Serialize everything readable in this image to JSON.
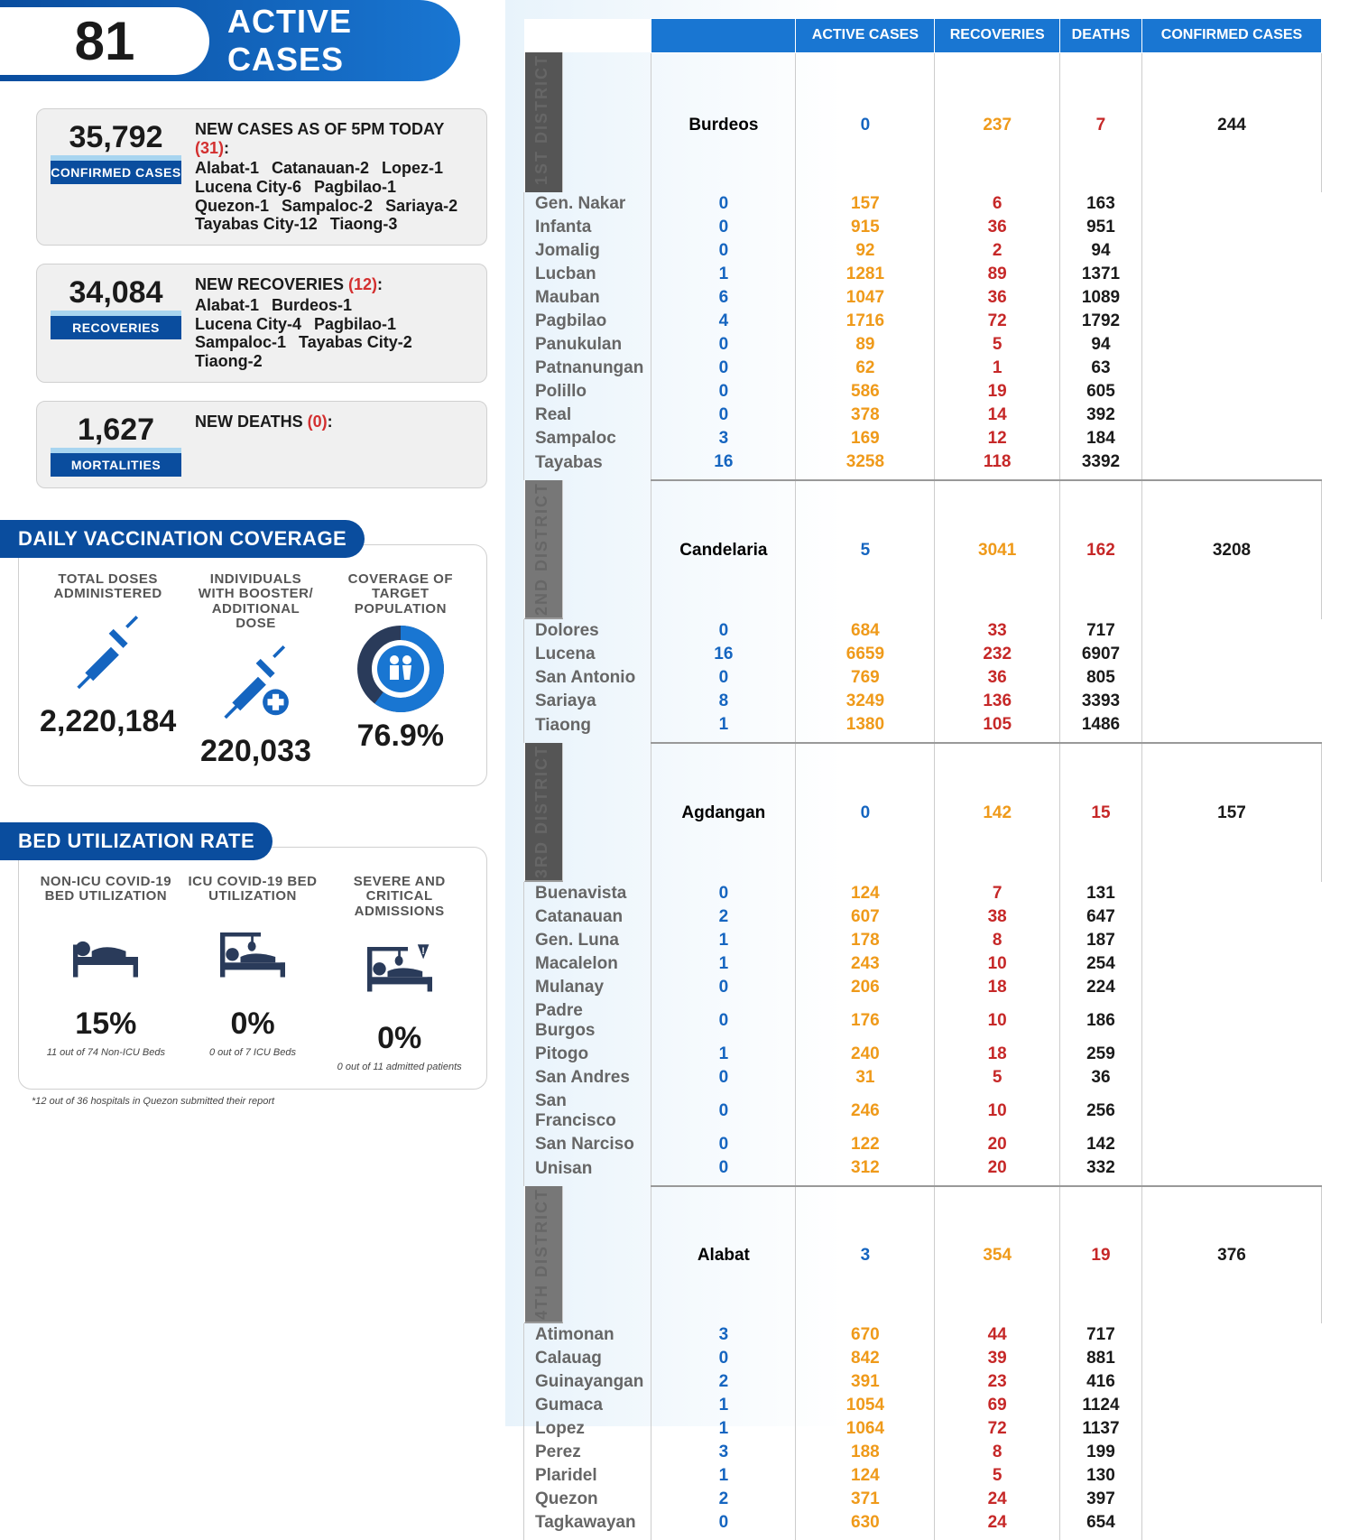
{
  "header": {
    "number": "81",
    "label": "ACTIVE CASES"
  },
  "stats": {
    "confirmed": {
      "num": "35,792",
      "badge": "CONFIRMED CASES",
      "title_pre": "NEW CASES AS OF 5PM TODAY ",
      "title_red": "(31)",
      "title_post": ":",
      "items": [
        "Alabat-1",
        "Catanauan-2",
        "Lopez-1",
        "Lucena City-6",
        "Pagbilao-1",
        "Quezon-1",
        "Sampaloc-2",
        "Sariaya-2",
        "Tayabas City-12",
        "Tiaong-3"
      ]
    },
    "recoveries": {
      "num": "34,084",
      "badge": "RECOVERIES",
      "title_pre": "NEW RECOVERIES ",
      "title_red": "(12)",
      "title_post": ":",
      "items": [
        "Alabat-1",
        "Burdeos-1",
        "Lucena City-4",
        "Pagbilao-1",
        "Sampaloc-1",
        "Tayabas City-2",
        "Tiaong-2"
      ]
    },
    "mortalities": {
      "num": "1,627",
      "badge": "MORTALITIES",
      "title_pre": "NEW DEATHS ",
      "title_red": "(0)",
      "title_post": ":",
      "items": []
    }
  },
  "vax": {
    "section": "DAILY VACCINATION COVERAGE",
    "doses_title": "TOTAL DOSES ADMINISTERED",
    "doses": "2,220,184",
    "booster_title": "INDIVIDUALS WITH BOOSTER/ ADDITIONAL DOSE",
    "booster": "220,033",
    "coverage_title": "COVERAGE OF TARGET POPULATION",
    "coverage": "76.9%"
  },
  "bed": {
    "section": "BED UTILIZATION RATE",
    "nonicu_title": "NON-ICU COVID-19 BED UTILIZATION",
    "nonicu": "15%",
    "nonicu_note": "11 out of 74 Non-ICU Beds",
    "icu_title": "ICU COVID-19 BED UTILIZATION",
    "icu": "0%",
    "icu_note": "0 out of 7 ICU Beds",
    "severe_title": "SEVERE AND CRITICAL ADMISSIONS",
    "severe": "0%",
    "severe_note": "0 out of 11 admitted patients",
    "footnote": "*12 out of 36 hospitals in Quezon submitted their report"
  },
  "table": {
    "headers": [
      "ACTIVE CASES",
      "RECOVERIES",
      "DEATHS",
      "CONFIRMED CASES"
    ],
    "districts": [
      {
        "name": "1ST DISTRICT",
        "rows": [
          [
            "Burdeos",
            "0",
            "237",
            "7",
            "244"
          ],
          [
            "Gen. Nakar",
            "0",
            "157",
            "6",
            "163"
          ],
          [
            "Infanta",
            "0",
            "915",
            "36",
            "951"
          ],
          [
            "Jomalig",
            "0",
            "92",
            "2",
            "94"
          ],
          [
            "Lucban",
            "1",
            "1281",
            "89",
            "1371"
          ],
          [
            "Mauban",
            "6",
            "1047",
            "36",
            "1089"
          ],
          [
            "Pagbilao",
            "4",
            "1716",
            "72",
            "1792"
          ],
          [
            "Panukulan",
            "0",
            "89",
            "5",
            "94"
          ],
          [
            "Patnanungan",
            "0",
            "62",
            "1",
            "63"
          ],
          [
            "Polillo",
            "0",
            "586",
            "19",
            "605"
          ],
          [
            "Real",
            "0",
            "378",
            "14",
            "392"
          ],
          [
            "Sampaloc",
            "3",
            "169",
            "12",
            "184"
          ],
          [
            "Tayabas",
            "16",
            "3258",
            "118",
            "3392"
          ]
        ]
      },
      {
        "name": "2ND DISTRICT",
        "rows": [
          [
            "Candelaria",
            "5",
            "3041",
            "162",
            "3208"
          ],
          [
            "Dolores",
            "0",
            "684",
            "33",
            "717"
          ],
          [
            "Lucena",
            "16",
            "6659",
            "232",
            "6907"
          ],
          [
            "San Antonio",
            "0",
            "769",
            "36",
            "805"
          ],
          [
            "Sariaya",
            "8",
            "3249",
            "136",
            "3393"
          ],
          [
            "Tiaong",
            "1",
            "1380",
            "105",
            "1486"
          ]
        ]
      },
      {
        "name": "3RD DISTRICT",
        "rows": [
          [
            "Agdangan",
            "0",
            "142",
            "15",
            "157"
          ],
          [
            "Buenavista",
            "0",
            "124",
            "7",
            "131"
          ],
          [
            "Catanauan",
            "2",
            "607",
            "38",
            "647"
          ],
          [
            "Gen. Luna",
            "1",
            "178",
            "8",
            "187"
          ],
          [
            "Macalelon",
            "1",
            "243",
            "10",
            "254"
          ],
          [
            "Mulanay",
            "0",
            "206",
            "18",
            "224"
          ],
          [
            "Padre Burgos",
            "0",
            "176",
            "10",
            "186"
          ],
          [
            "Pitogo",
            "1",
            "240",
            "18",
            "259"
          ],
          [
            "San Andres",
            "0",
            "31",
            "5",
            "36"
          ],
          [
            "San Francisco",
            "0",
            "246",
            "10",
            "256"
          ],
          [
            "San Narciso",
            "0",
            "122",
            "20",
            "142"
          ],
          [
            "Unisan",
            "0",
            "312",
            "20",
            "332"
          ]
        ]
      },
      {
        "name": "4TH DISTRICT",
        "rows": [
          [
            "Alabat",
            "3",
            "354",
            "19",
            "376"
          ],
          [
            "Atimonan",
            "3",
            "670",
            "44",
            "717"
          ],
          [
            "Calauag",
            "0",
            "842",
            "39",
            "881"
          ],
          [
            "Guinayangan",
            "2",
            "391",
            "23",
            "416"
          ],
          [
            "Gumaca",
            "1",
            "1054",
            "69",
            "1124"
          ],
          [
            "Lopez",
            "1",
            "1064",
            "72",
            "1137"
          ],
          [
            "Perez",
            "3",
            "188",
            "8",
            "199"
          ],
          [
            "Plaridel",
            "1",
            "124",
            "5",
            "130"
          ],
          [
            "Quezon",
            "2",
            "371",
            "24",
            "397"
          ],
          [
            "Tagkawayan",
            "0",
            "630",
            "24",
            "654"
          ]
        ]
      }
    ]
  }
}
